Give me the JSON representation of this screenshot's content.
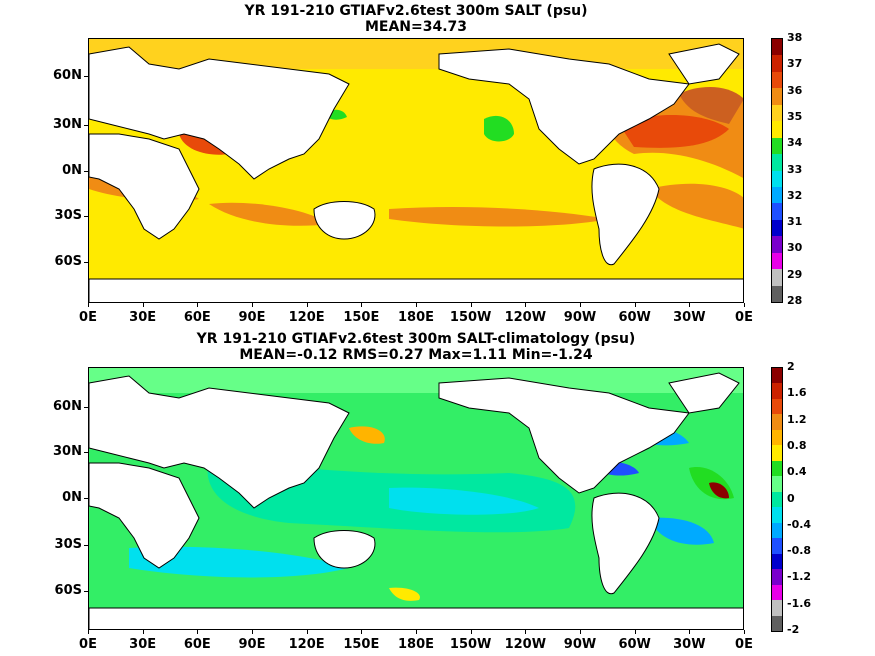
{
  "panels": [
    {
      "title_line1": "YR 191-210 GTIAFv2.6test 300m SALT (psu)",
      "title_line2": "MEAN=34.73",
      "ocean_color": "#ffea00",
      "colorbar": {
        "labels": [
          "38",
          "37",
          "36",
          "35",
          "34",
          "33",
          "32",
          "31",
          "30",
          "29",
          "28"
        ],
        "colors": [
          "#8b0000",
          "#cc2200",
          "#e84a0a",
          "#f08c14",
          "#ffd21e",
          "#ffea00",
          "#22dd22",
          "#00e8a0",
          "#00e0ee",
          "#00aaff",
          "#1e50ff",
          "#0000cc",
          "#7a00cc",
          "#e800e8",
          "#c0c0c0",
          "#606060"
        ]
      }
    },
    {
      "title_line1": "YR 191-210 GTIAFv2.6test 300m SALT-climatology (psu)",
      "title_line2": "MEAN=-0.12   RMS=0.27   Max=1.11   Min=-1.24",
      "ocean_color": "#33ee66",
      "colorbar": {
        "labels": [
          "2",
          "1.6",
          "1.2",
          "0.8",
          "0.4",
          "0",
          "-0.4",
          "-0.8",
          "-1.2",
          "-1.6",
          "-2"
        ],
        "colors": [
          "#8b0000",
          "#cc2200",
          "#e84a0a",
          "#f08c14",
          "#ffb400",
          "#ffea00",
          "#22dd22",
          "#66ff88",
          "#00e8a0",
          "#00e0ee",
          "#00aaff",
          "#1e50ff",
          "#0000cc",
          "#7a00cc",
          "#e800e8",
          "#c0c0c0",
          "#606060"
        ]
      }
    }
  ],
  "axes": {
    "y_labels": [
      "60N",
      "30N",
      "0N",
      "30S",
      "60S"
    ],
    "x_labels": [
      "0E",
      "30E",
      "60E",
      "90E",
      "120E",
      "150E",
      "180E",
      "150W",
      "120W",
      "90W",
      "60W",
      "30W",
      "0E"
    ]
  }
}
